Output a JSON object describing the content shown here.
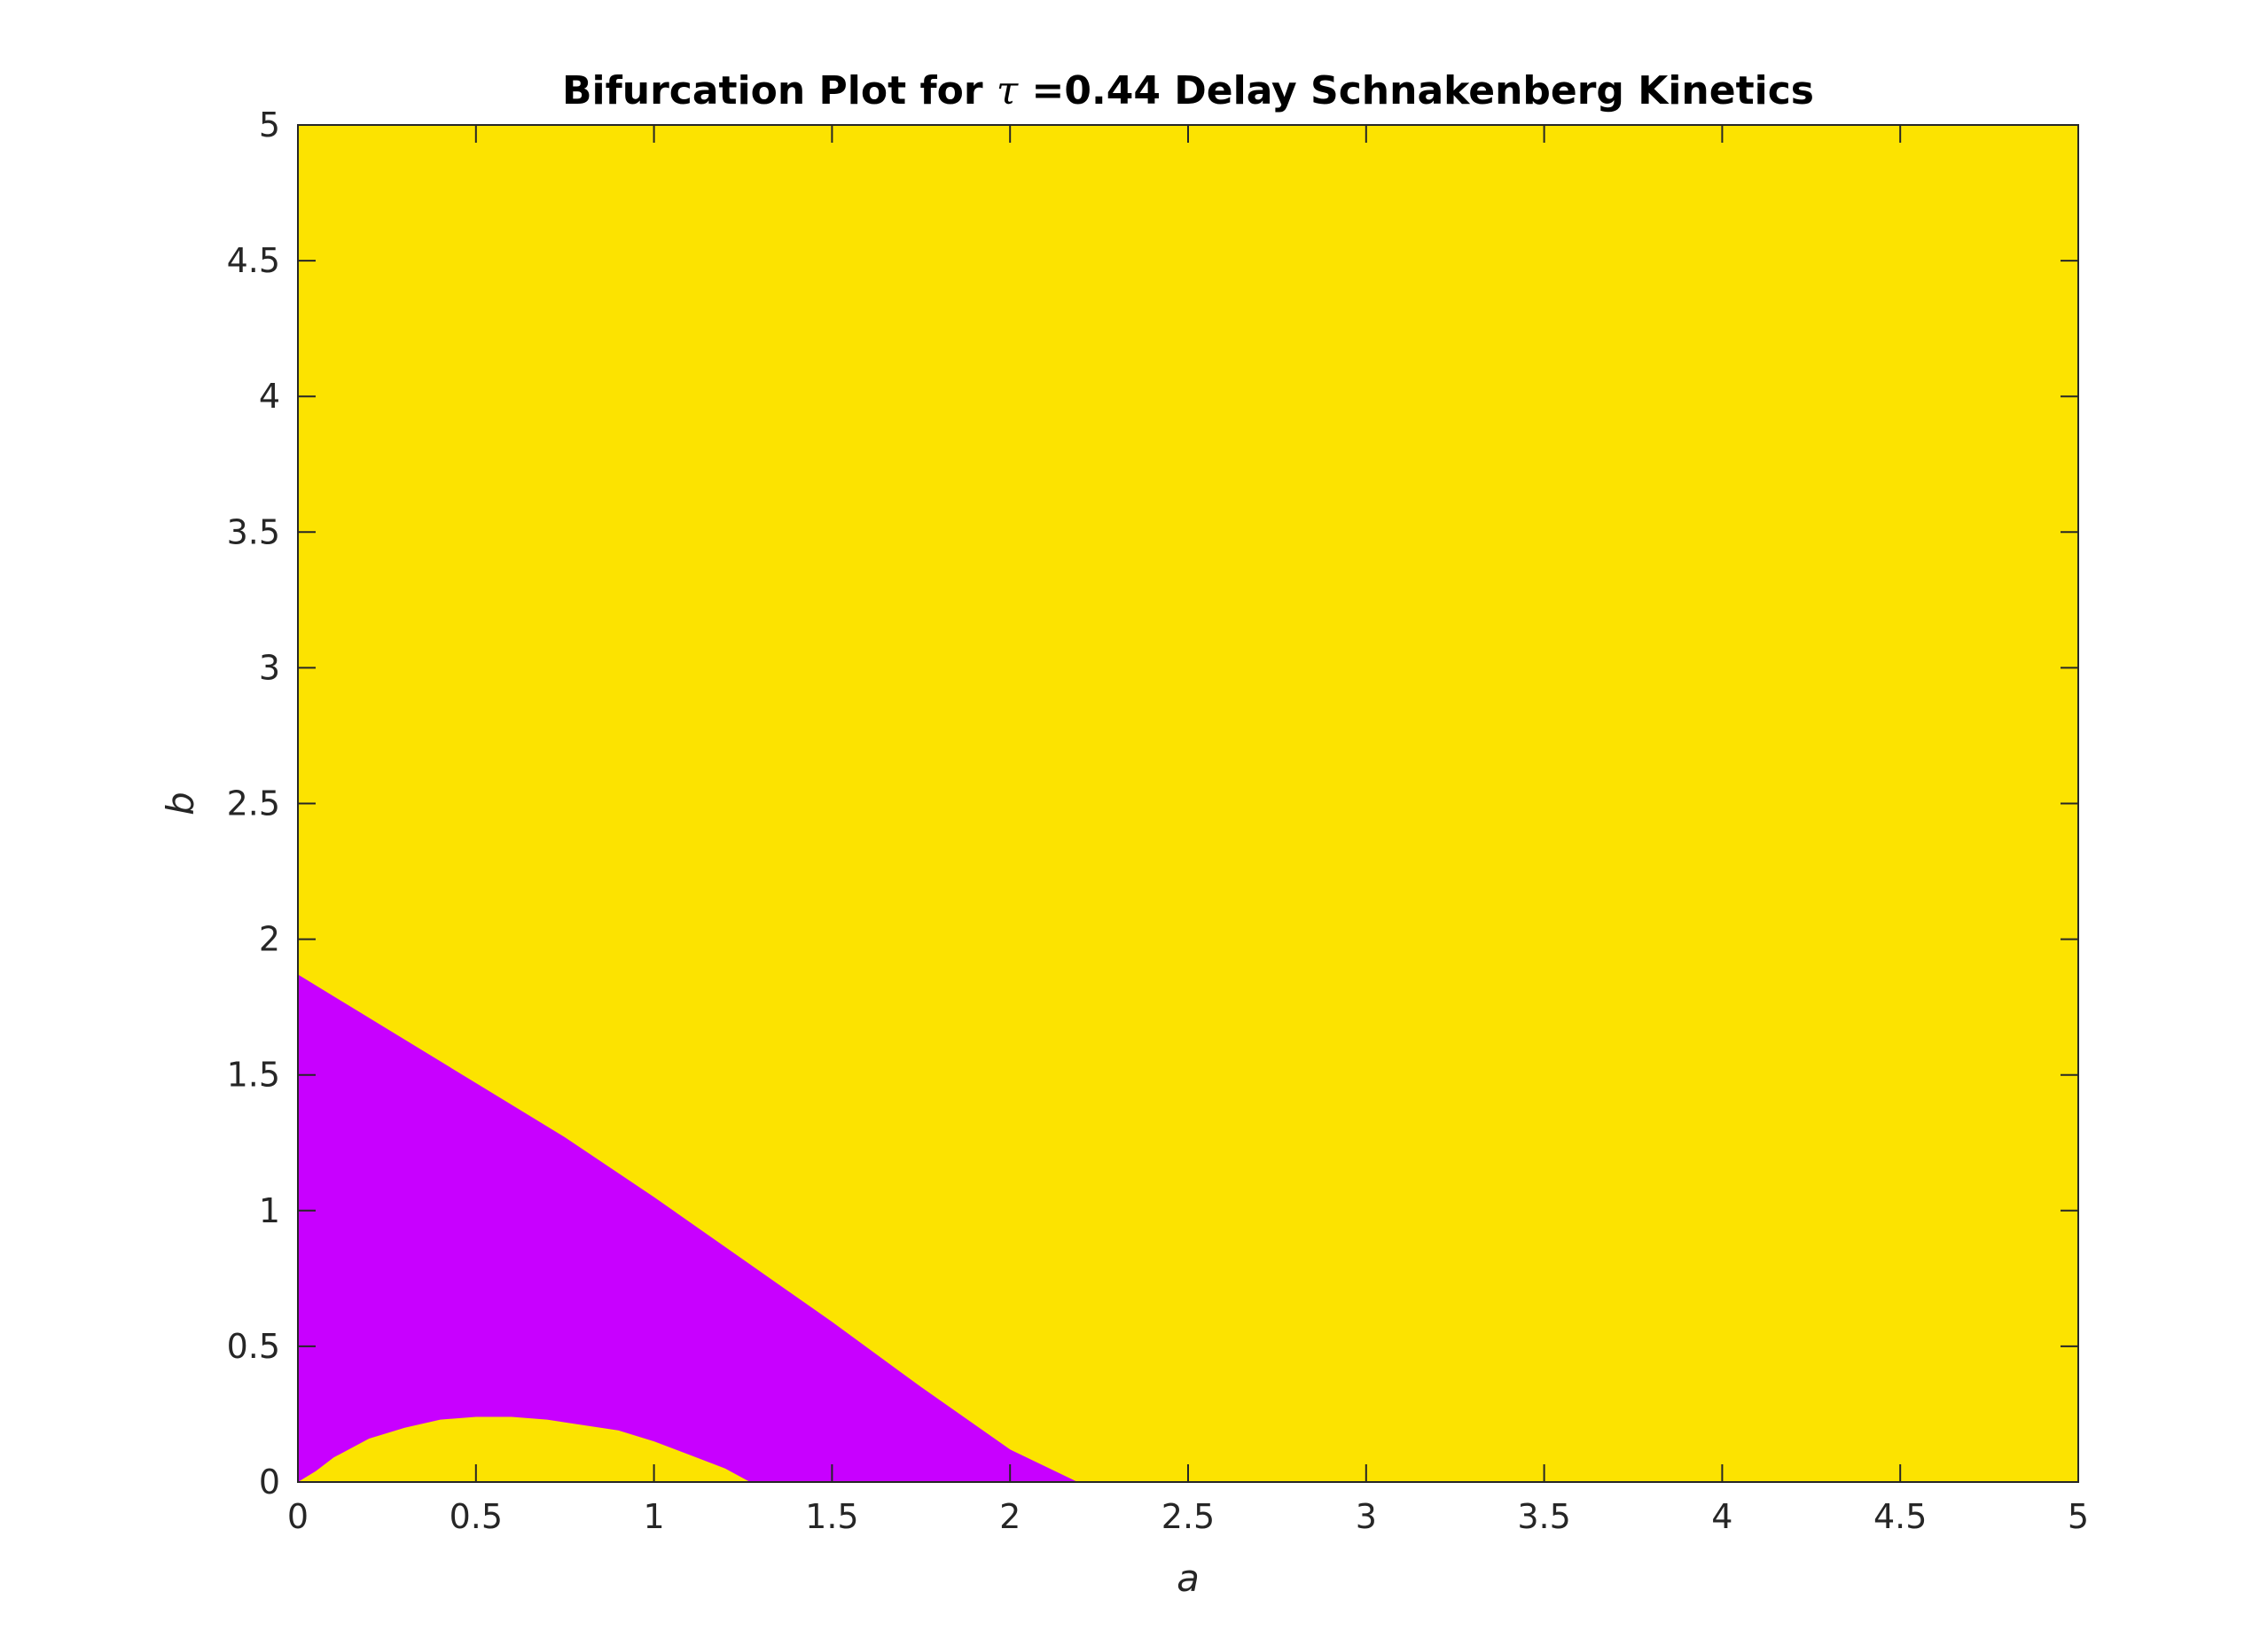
{
  "chart_data": {
    "type": "heatmap",
    "title": {
      "prefix": "Bifurcation Plot for ",
      "symbol": "τ",
      "suffix": " =0.44 Delay Schnakenberg Kinetics"
    },
    "xlabel": "a",
    "ylabel": "b",
    "xlim": [
      0,
      5
    ],
    "ylim": [
      0,
      5
    ],
    "xticks": [
      0,
      0.5,
      1,
      1.5,
      2,
      2.5,
      3,
      3.5,
      4,
      4.5,
      5
    ],
    "xtick_labels": [
      "0",
      "0.5",
      "1",
      "1.5",
      "2",
      "2.5",
      "3",
      "3.5",
      "4",
      "4.5",
      "5"
    ],
    "yticks": [
      0,
      0.5,
      1,
      1.5,
      2,
      2.5,
      3,
      3.5,
      4,
      4.5,
      5
    ],
    "ytick_labels": [
      "0",
      "0.5",
      "1",
      "1.5",
      "2",
      "2.5",
      "3",
      "3.5",
      "4",
      "4.5",
      "5"
    ],
    "grid": false,
    "colors": {
      "background_region": "#fce300",
      "instability_region": "#c800ff",
      "axes": "#262626"
    },
    "regions": [
      {
        "color_key": "instability_region",
        "description_hidden": true,
        "upper_boundary": {
          "a": [
            0,
            0.25,
            0.5,
            0.75,
            1.0,
            1.25,
            1.5,
            1.75,
            2.0,
            2.19
          ],
          "b": [
            1.87,
            1.67,
            1.47,
            1.27,
            1.05,
            0.82,
            0.59,
            0.35,
            0.12,
            0
          ]
        },
        "lower_boundary": {
          "a": [
            0,
            0.05,
            0.1,
            0.2,
            0.3,
            0.4,
            0.5,
            0.6,
            0.7,
            0.8,
            0.9,
            1.0,
            1.1,
            1.2,
            1.27
          ],
          "b": [
            0,
            0.04,
            0.09,
            0.16,
            0.2,
            0.23,
            0.24,
            0.24,
            0.23,
            0.21,
            0.19,
            0.15,
            0.1,
            0.05,
            0
          ]
        }
      }
    ]
  }
}
